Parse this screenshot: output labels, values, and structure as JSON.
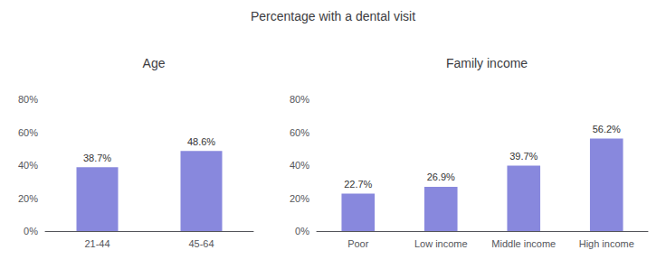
{
  "chart_data": [
    {
      "type": "bar",
      "title": "Percentage with a dental visit",
      "subtitle": "Age",
      "categories": [
        "21-44",
        "45-64"
      ],
      "values": [
        38.7,
        48.6
      ],
      "value_labels": [
        "38.7%",
        "48.6%"
      ],
      "color": "#8888dd",
      "ylim": [
        0,
        80
      ],
      "yticks": [
        {
          "value": 0,
          "label": "0%"
        },
        {
          "value": 20,
          "label": "20%"
        },
        {
          "value": 40,
          "label": "40%"
        },
        {
          "value": 60,
          "label": "60%"
        },
        {
          "value": 80,
          "label": "80%"
        }
      ],
      "grid": false,
      "data_labels": true
    },
    {
      "type": "bar",
      "subtitle": "Family income",
      "categories": [
        "Poor",
        "Low income",
        "Middle income",
        "High income"
      ],
      "values": [
        22.7,
        26.9,
        39.7,
        56.2
      ],
      "value_labels": [
        "22.7%",
        "26.9%",
        "39.7%",
        "56.2%"
      ],
      "color": "#8888dd",
      "ylim": [
        0,
        80
      ],
      "yticks": [
        {
          "value": 0,
          "label": "0%"
        },
        {
          "value": 20,
          "label": "20%"
        },
        {
          "value": 40,
          "label": "40%"
        },
        {
          "value": 60,
          "label": "60%"
        },
        {
          "value": 80,
          "label": "80%"
        }
      ],
      "grid": false,
      "data_labels": true
    }
  ]
}
